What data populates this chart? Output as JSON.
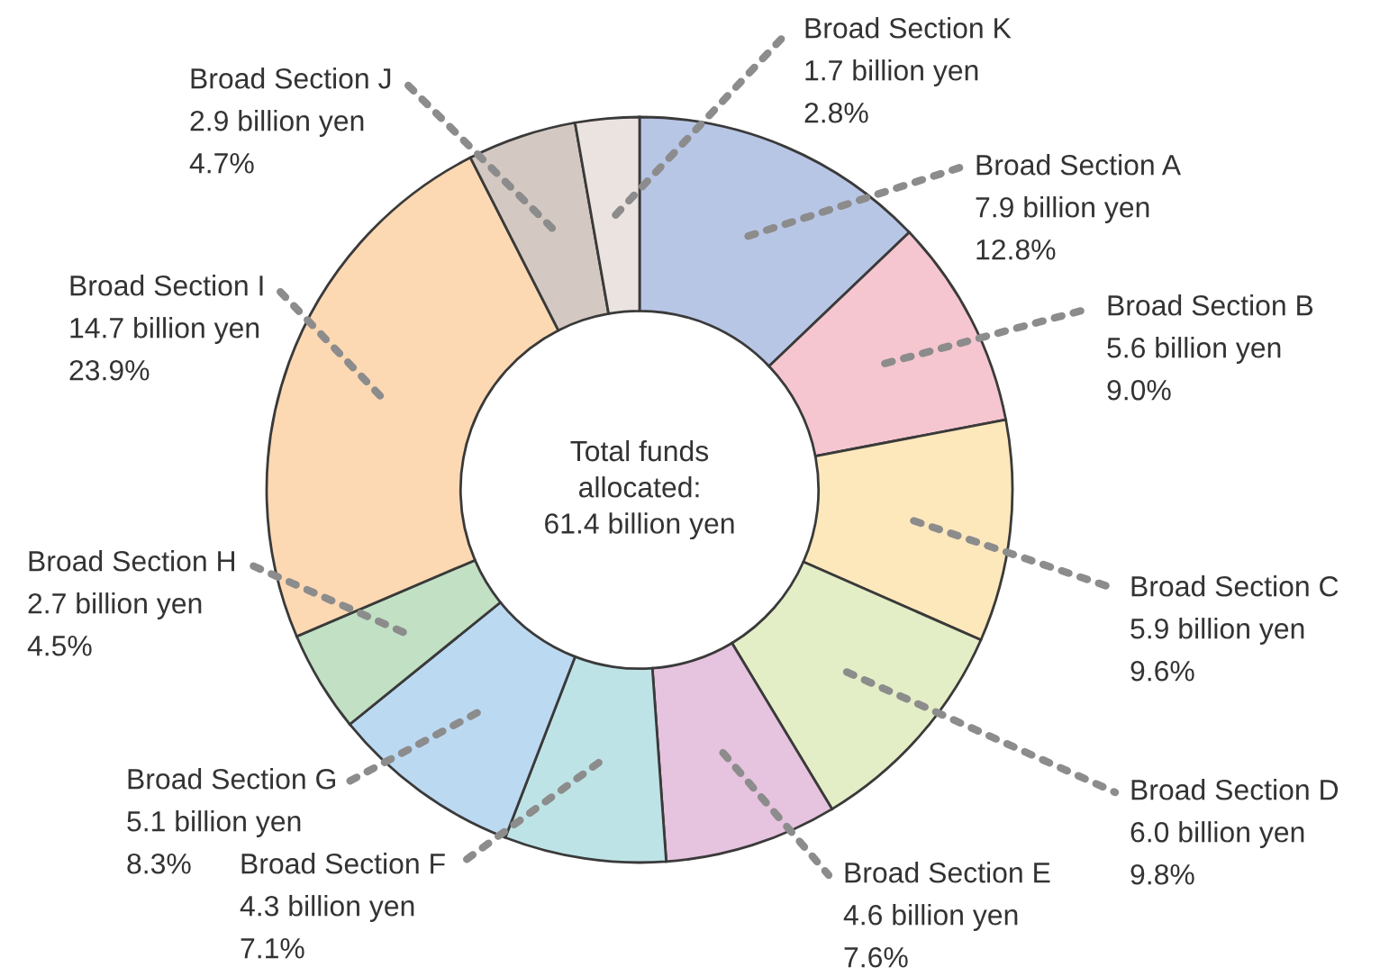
{
  "chart_data": {
    "type": "donut",
    "categories": [
      "Broad Section A",
      "Broad Section B",
      "Broad Section C",
      "Broad Section D",
      "Broad Section E",
      "Broad Section F",
      "Broad Section G",
      "Broad Section H",
      "Broad Section I",
      "Broad Section J",
      "Broad Section K"
    ],
    "values": [
      7.9,
      5.6,
      5.9,
      6.0,
      4.6,
      4.3,
      5.1,
      2.7,
      14.7,
      2.9,
      1.7
    ],
    "colors": [
      "#b8c6e6",
      "#f5c6d0",
      "#fde8bc",
      "#e3edc6",
      "#e6c3de",
      "#bee3e6",
      "#bcd9f2",
      "#c1e0c4",
      "#fcd9b3",
      "#d4c9c2",
      "#ebe3df"
    ],
    "value_labels": [
      "7.9 billion yen",
      "5.6 billion yen",
      "5.9 billion yen",
      "6.0 billion yen",
      "4.6 billion yen",
      "4.3 billion yen",
      "5.1 billion yen",
      "2.7 billion yen",
      "14.7 billion yen",
      "2.9 billion yen",
      "1.7 billion yen"
    ],
    "annotations": [
      "Total funds\nallocated:\n61.4 billion yen",
      {
        "text": "12.8%",
        "x": "Broad Section A"
      },
      {
        "text": "9.0%",
        "x": "Broad Section B"
      },
      {
        "text": "9.6%",
        "x": "Broad Section C"
      },
      {
        "text": "9.8%",
        "x": "Broad Section D"
      },
      {
        "text": "7.6%",
        "x": "Broad Section E"
      },
      {
        "text": "7.1%",
        "x": "Broad Section F"
      },
      {
        "text": "8.3%",
        "x": "Broad Section G"
      },
      {
        "text": "4.5%",
        "x": "Broad Section H"
      },
      {
        "text": "23.9%",
        "x": "Broad Section I"
      },
      {
        "text": "4.7%",
        "x": "Broad Section J"
      },
      {
        "text": "2.8%",
        "x": "Broad Section K"
      }
    ]
  }
}
